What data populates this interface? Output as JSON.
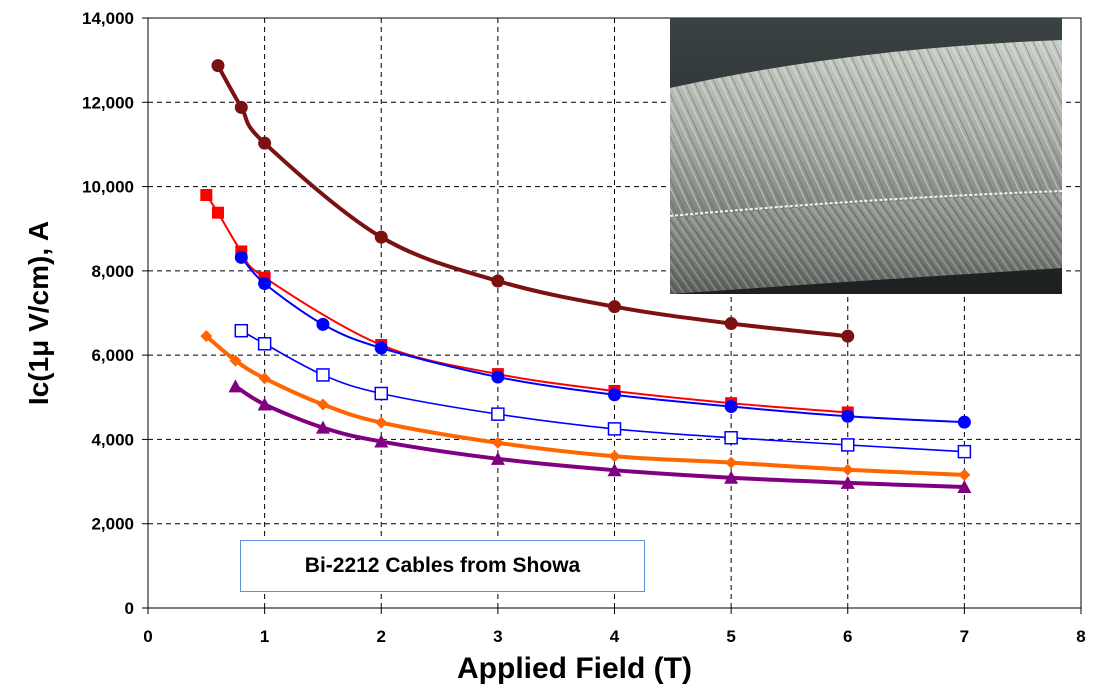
{
  "chart_data": {
    "type": "line",
    "title": "",
    "xlabel": "Applied Field (T)",
    "ylabel": "Ic(1μ V/cm), A",
    "xlim": [
      0,
      8
    ],
    "ylim": [
      0,
      14000
    ],
    "x_ticks": [
      "0",
      "1",
      "2",
      "3",
      "4",
      "5",
      "6",
      "7",
      "8"
    ],
    "y_ticks": [
      "0",
      "2,000",
      "4,000",
      "6,000",
      "8,000",
      "10,000",
      "12,000",
      "14,000"
    ],
    "grid": true,
    "legend": "none",
    "series": [
      {
        "marker": "circle",
        "color": "#7b1111",
        "x": [
          0.6,
          0.8,
          1,
          2,
          3,
          4,
          5,
          6
        ],
        "y": [
          12870,
          11880,
          11030,
          8800,
          7760,
          7150,
          6750,
          6450
        ]
      },
      {
        "marker": "square",
        "color": "#ff0000",
        "x": [
          0.5,
          0.6,
          0.8,
          1,
          2,
          3,
          4,
          5,
          6
        ],
        "y": [
          9800,
          9380,
          8460,
          7840,
          6240,
          5550,
          5150,
          4860,
          4640
        ]
      },
      {
        "marker": "circle",
        "color": "#0000ff",
        "x": [
          0.8,
          1,
          1.5,
          2,
          3,
          4,
          5,
          6,
          7
        ],
        "y": [
          8320,
          7700,
          6730,
          6170,
          5480,
          5060,
          4780,
          4550,
          4410
        ]
      },
      {
        "marker": "open-square",
        "color": "#0000ff",
        "x": [
          0.8,
          1,
          1.5,
          2,
          3,
          4,
          5,
          6,
          7
        ],
        "y": [
          6580,
          6270,
          5530,
          5090,
          4600,
          4250,
          4040,
          3870,
          3710
        ]
      },
      {
        "marker": "diamond",
        "color": "#ff6600",
        "x": [
          0.5,
          0.75,
          1,
          1.5,
          2,
          3,
          4,
          5,
          6,
          7
        ],
        "y": [
          6450,
          5870,
          5450,
          4830,
          4400,
          3920,
          3600,
          3450,
          3280,
          3160
        ]
      },
      {
        "marker": "triangle",
        "color": "#800080",
        "x": [
          0.75,
          1,
          1.5,
          2,
          3,
          4,
          5,
          6,
          7
        ],
        "y": [
          5260,
          4830,
          4280,
          3950,
          3540,
          3270,
          3090,
          2970,
          2870
        ]
      }
    ],
    "annotation": "Bi-2212 Cables from Showa"
  }
}
